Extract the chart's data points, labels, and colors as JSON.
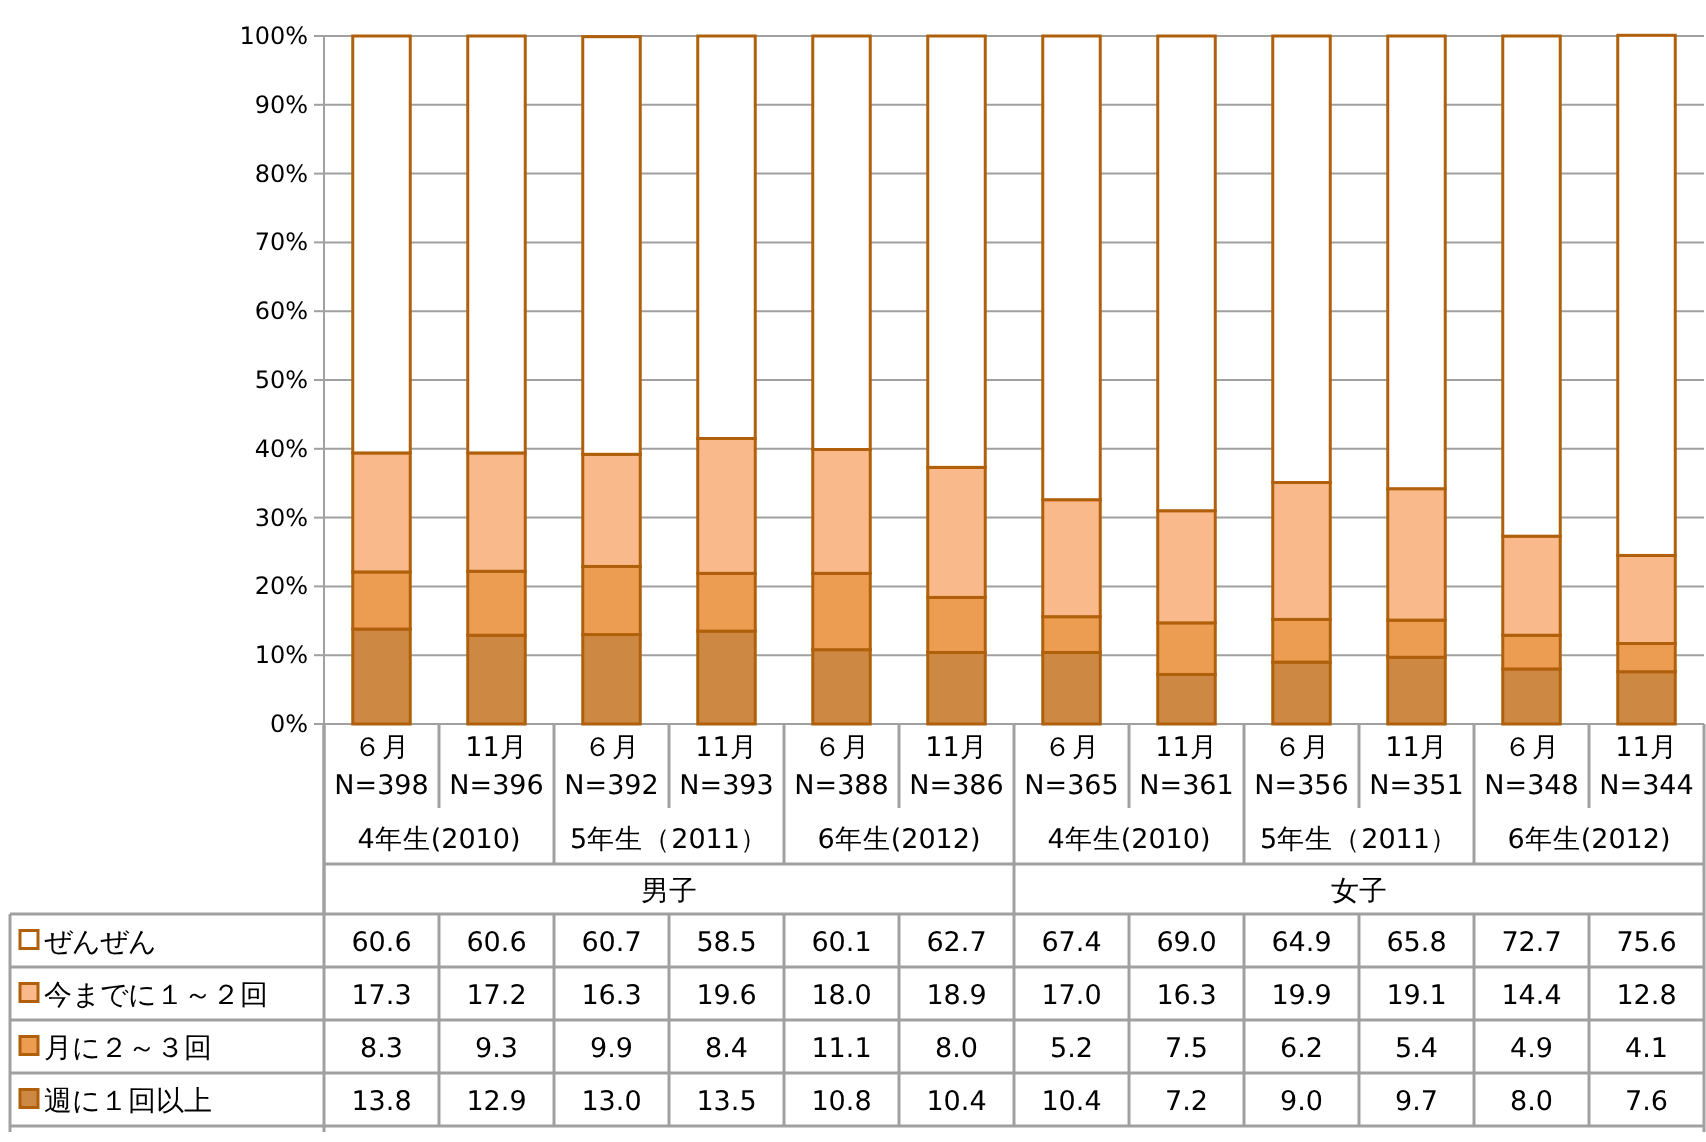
{
  "chart_data": {
    "type": "bar",
    "stacked": true,
    "categories": [
      "６月\nN=398",
      "11月\nN=396",
      "６月\nN=392",
      "11月\nN=393",
      "６月\nN=388",
      "11月\nN=386",
      "６月\nN=365",
      "11月\nN=361",
      "６月\nN=356",
      "11月\nN=351",
      "６月\nN=348",
      "11月\nN=344"
    ],
    "series": [
      {
        "name": "週に１回以上",
        "color": "#cd8843",
        "values": [
          13.8,
          12.9,
          13.0,
          13.5,
          10.8,
          10.4,
          10.4,
          7.2,
          9.0,
          9.7,
          8.0,
          7.6
        ],
        "value_labels": [
          "13.8",
          "12.9",
          "13.0",
          "13.5",
          "10.8",
          "10.4",
          "10.4",
          "7.2",
          "9.0",
          "9.7",
          "8.0",
          "7.6"
        ]
      },
      {
        "name": "月に２～３回",
        "color": "#ec9d52",
        "values": [
          8.3,
          9.3,
          9.9,
          8.4,
          11.1,
          8.0,
          5.2,
          7.5,
          6.2,
          5.4,
          4.9,
          4.1
        ],
        "value_labels": [
          "8.3",
          "9.3",
          "9.9",
          "8.4",
          "11.1",
          "8.0",
          "5.2",
          "7.5",
          "6.2",
          "5.4",
          "4.9",
          "4.1"
        ]
      },
      {
        "name": "今までに１～２回",
        "color": "#fab98a",
        "values": [
          17.3,
          17.2,
          16.3,
          19.6,
          18.0,
          18.9,
          17.0,
          16.3,
          19.9,
          19.1,
          14.4,
          12.8
        ],
        "value_labels": [
          "17.3",
          "17.2",
          "16.3",
          "19.6",
          "18.0",
          "18.9",
          "17.0",
          "16.3",
          "19.9",
          "19.1",
          "14.4",
          "12.8"
        ]
      },
      {
        "name": "ぜんぜん",
        "color": "#ffffff",
        "values": [
          60.6,
          60.6,
          60.7,
          58.5,
          60.1,
          62.7,
          67.4,
          69.0,
          64.9,
          65.8,
          72.7,
          75.6
        ],
        "value_labels": [
          "60.6",
          "60.6",
          "60.7",
          "58.5",
          "60.1",
          "62.7",
          "67.4",
          "69.0",
          "64.9",
          "65.8",
          "72.7",
          "75.6"
        ]
      }
    ],
    "ylim": [
      0,
      100
    ],
    "yticks": [
      {
        "value": 0,
        "label": "0%"
      },
      {
        "value": 10,
        "label": "10%"
      },
      {
        "value": 20,
        "label": "20%"
      },
      {
        "value": 30,
        "label": "30%"
      },
      {
        "value": 40,
        "label": "40%"
      },
      {
        "value": 50,
        "label": "50%"
      },
      {
        "value": 60,
        "label": "60%"
      },
      {
        "value": 70,
        "label": "70%"
      },
      {
        "value": 80,
        "label": "80%"
      },
      {
        "value": 90,
        "label": "90%"
      },
      {
        "value": 100,
        "label": "100%"
      }
    ],
    "grid": "y",
    "legend": "bottom",
    "annotations": [
      "4年生(2010)",
      "5年生（2011）",
      "6年生(2012)",
      "4年生(2010)",
      "5年生（2011）",
      "6年生(2012)",
      "男子",
      "女子"
    ]
  }
}
